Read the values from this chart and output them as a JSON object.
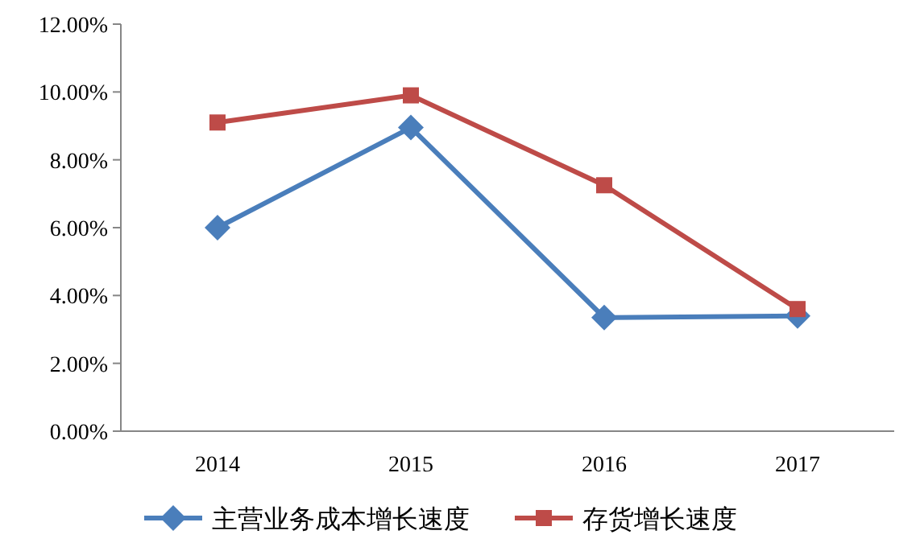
{
  "chart_data": {
    "type": "line",
    "categories": [
      "2014",
      "2015",
      "2016",
      "2017"
    ],
    "series": [
      {
        "name": "主营业务成本增长速度",
        "color": "#4a7ebb",
        "marker": "diamond",
        "values": [
          6.0,
          8.95,
          3.35,
          3.4
        ]
      },
      {
        "name": "存货增长速度",
        "color": "#be4b48",
        "marker": "square",
        "values": [
          9.1,
          9.9,
          7.25,
          3.6
        ]
      }
    ],
    "ylim": [
      0,
      12
    ],
    "yticks": [
      {
        "value": 0,
        "label": "0.00%"
      },
      {
        "value": 2,
        "label": "2.00%"
      },
      {
        "value": 4,
        "label": "4.00%"
      },
      {
        "value": 6,
        "label": "6.00%"
      },
      {
        "value": 8,
        "label": "8.00%"
      },
      {
        "value": 10,
        "label": "10.00%"
      },
      {
        "value": 12,
        "label": "12.00%"
      }
    ],
    "legend": "bottom",
    "line_style": "solid"
  }
}
